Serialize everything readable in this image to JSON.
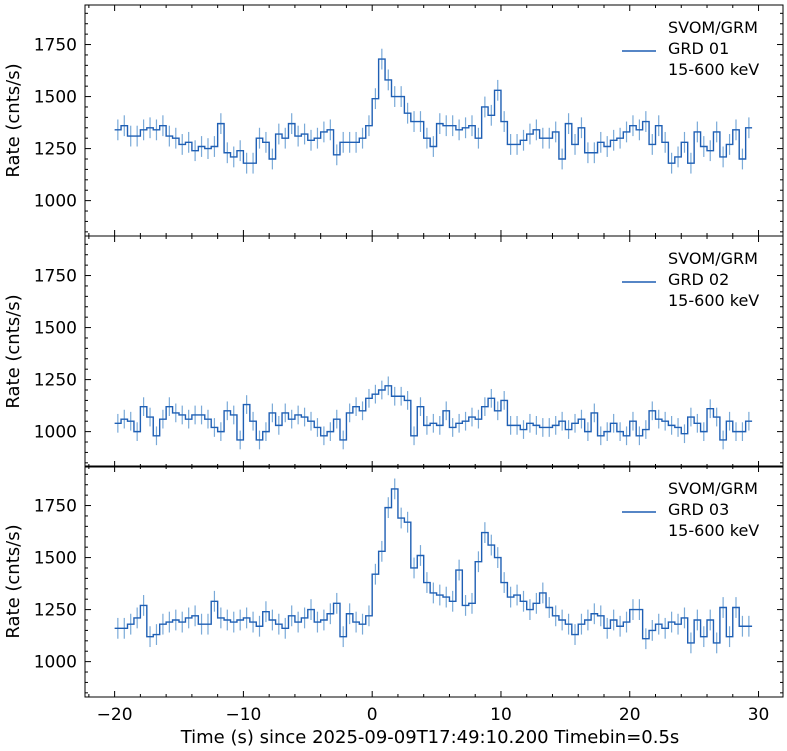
{
  "chart_data": [
    {
      "type": "line",
      "panel": "GRD 01",
      "ylabel": "Rate (cnts/s)",
      "xlabel": "",
      "ylim": [
        830,
        1940
      ],
      "xlim": [
        -22.3,
        31.9
      ],
      "yticks": [
        1000,
        1250,
        1500,
        1750
      ],
      "legend_lines": [
        "SVOM/GRM",
        "GRD 01",
        "15-600 keV"
      ],
      "legend_placement": "top-right",
      "series": [
        {
          "name": "GRD 01",
          "bin_width": 0.5,
          "x": [
            -20.0,
            -19.5,
            -19.0,
            -18.5,
            -18.0,
            -17.5,
            -17.0,
            -16.5,
            -16.0,
            -15.5,
            -15.0,
            -14.5,
            -14.0,
            -13.5,
            -13.0,
            -12.5,
            -12.0,
            -11.5,
            -11.0,
            -10.5,
            -10.0,
            -9.5,
            -9.0,
            -8.5,
            -8.0,
            -7.5,
            -7.0,
            -6.5,
            -6.0,
            -5.5,
            -5.0,
            -4.5,
            -4.0,
            -3.5,
            -3.0,
            -2.5,
            -2.0,
            -1.5,
            -1.0,
            -0.5,
            0.0,
            0.5,
            1.0,
            1.5,
            2.0,
            2.5,
            3.0,
            3.5,
            4.0,
            4.5,
            5.0,
            5.5,
            6.0,
            6.5,
            7.0,
            7.5,
            8.0,
            8.5,
            9.0,
            9.5,
            10.0,
            10.5,
            11.0,
            11.5,
            12.0,
            12.5,
            13.0,
            13.5,
            14.0,
            14.5,
            15.0,
            15.5,
            16.0,
            16.5,
            17.0,
            17.5,
            18.0,
            18.5,
            19.0,
            19.5,
            20.0,
            20.5,
            21.0,
            21.5,
            22.0,
            22.5,
            23.0,
            23.5,
            24.0,
            24.5,
            25.0,
            25.5,
            26.0,
            26.5,
            27.0,
            27.5,
            28.0,
            28.5,
            29.0
          ],
          "y": [
            1340,
            1360,
            1310,
            1310,
            1340,
            1350,
            1340,
            1360,
            1310,
            1300,
            1270,
            1280,
            1240,
            1260,
            1250,
            1260,
            1370,
            1230,
            1210,
            1240,
            1180,
            1180,
            1300,
            1280,
            1200,
            1320,
            1300,
            1370,
            1310,
            1320,
            1290,
            1300,
            1330,
            1340,
            1220,
            1280,
            1280,
            1280,
            1300,
            1360,
            1490,
            1680,
            1580,
            1500,
            1500,
            1420,
            1380,
            1380,
            1300,
            1260,
            1370,
            1360,
            1360,
            1340,
            1350,
            1360,
            1300,
            1450,
            1410,
            1530,
            1380,
            1270,
            1270,
            1290,
            1320,
            1340,
            1300,
            1300,
            1330,
            1200,
            1370,
            1270,
            1350,
            1230,
            1230,
            1280,
            1260,
            1290,
            1300,
            1330,
            1360,
            1340,
            1380,
            1270,
            1360,
            1280,
            1180,
            1210,
            1280,
            1180,
            1330,
            1260,
            1240,
            1330,
            1210,
            1270,
            1340,
            1200,
            1350
          ],
          "error": 50
        }
      ]
    },
    {
      "type": "line",
      "panel": "GRD 02",
      "ylabel": "Rate (cnts/s)",
      "xlabel": "",
      "ylim": [
        830,
        1940
      ],
      "xlim": [
        -22.3,
        31.9
      ],
      "yticks": [
        1000,
        1250,
        1500,
        1750
      ],
      "legend_lines": [
        "SVOM/GRM",
        "GRD 02",
        "15-600 keV"
      ],
      "legend_placement": "top-right",
      "series": [
        {
          "name": "GRD 02",
          "bin_width": 0.5,
          "x": [
            -20.0,
            -19.5,
            -19.0,
            -18.5,
            -18.0,
            -17.5,
            -17.0,
            -16.5,
            -16.0,
            -15.5,
            -15.0,
            -14.5,
            -14.0,
            -13.5,
            -13.0,
            -12.5,
            -12.0,
            -11.5,
            -11.0,
            -10.5,
            -10.0,
            -9.5,
            -9.0,
            -8.5,
            -8.0,
            -7.5,
            -7.0,
            -6.5,
            -6.0,
            -5.5,
            -5.0,
            -4.5,
            -4.0,
            -3.5,
            -3.0,
            -2.5,
            -2.0,
            -1.5,
            -1.0,
            -0.5,
            0.0,
            0.5,
            1.0,
            1.5,
            2.0,
            2.5,
            3.0,
            3.5,
            4.0,
            4.5,
            5.0,
            5.5,
            6.0,
            6.5,
            7.0,
            7.5,
            8.0,
            8.5,
            9.0,
            9.5,
            10.0,
            10.5,
            11.0,
            11.5,
            12.0,
            12.5,
            13.0,
            13.5,
            14.0,
            14.5,
            15.0,
            15.5,
            16.0,
            16.5,
            17.0,
            17.5,
            18.0,
            18.5,
            19.0,
            19.5,
            20.0,
            20.5,
            21.0,
            21.5,
            22.0,
            22.5,
            23.0,
            23.5,
            24.0,
            24.5,
            25.0,
            25.5,
            26.0,
            26.5,
            27.0,
            27.5,
            28.0,
            28.5,
            29.0
          ],
          "y": [
            1040,
            1060,
            1050,
            1000,
            1120,
            1070,
            980,
            1060,
            1120,
            1090,
            1080,
            1060,
            1080,
            1080,
            1060,
            1020,
            1000,
            1100,
            1080,
            960,
            1130,
            1050,
            960,
            1000,
            1090,
            1030,
            1090,
            1060,
            1080,
            1070,
            1050,
            1020,
            980,
            1000,
            1060,
            960,
            1090,
            1120,
            1100,
            1160,
            1180,
            1200,
            1220,
            1170,
            1170,
            1150,
            980,
            1120,
            1030,
            1040,
            1030,
            1100,
            1020,
            1040,
            1050,
            1070,
            1060,
            1120,
            1160,
            1100,
            1150,
            1030,
            1030,
            1010,
            1040,
            1030,
            1020,
            1020,
            1030,
            1050,
            1010,
            1040,
            1060,
            1000,
            1090,
            980,
            1000,
            1040,
            1000,
            980,
            1050,
            980,
            1010,
            1100,
            1060,
            1050,
            1030,
            1020,
            990,
            1070,
            1040,
            1000,
            1110,
            1070,
            960,
            1050,
            1000,
            1000,
            1050
          ],
          "error": 45
        }
      ]
    },
    {
      "type": "line",
      "panel": "GRD 03",
      "ylabel": "Rate (cnts/s)",
      "xlabel": "Time (s) since 2025-09-09T17:49:10.200 Timebin=0.5s",
      "ylim": [
        830,
        1940
      ],
      "xlim": [
        -22.3,
        31.9
      ],
      "yticks": [
        1000,
        1250,
        1500,
        1750
      ],
      "xticks": [
        -20,
        -10,
        0,
        10,
        20,
        30
      ],
      "xtick_labels": [
        "−20",
        "−10",
        "0",
        "10",
        "20",
        "30"
      ],
      "legend_lines": [
        "SVOM/GRM",
        "GRD 03",
        "15-600 keV"
      ],
      "legend_placement": "top-right",
      "series": [
        {
          "name": "GRD 03",
          "bin_width": 0.5,
          "x": [
            -20.0,
            -19.5,
            -19.0,
            -18.5,
            -18.0,
            -17.5,
            -17.0,
            -16.5,
            -16.0,
            -15.5,
            -15.0,
            -14.5,
            -14.0,
            -13.5,
            -13.0,
            -12.5,
            -12.0,
            -11.5,
            -11.0,
            -10.5,
            -10.0,
            -9.5,
            -9.0,
            -8.5,
            -8.0,
            -7.5,
            -7.0,
            -6.5,
            -6.0,
            -5.5,
            -5.0,
            -4.5,
            -4.0,
            -3.5,
            -3.0,
            -2.5,
            -2.0,
            -1.5,
            -1.0,
            -0.5,
            0.0,
            0.5,
            1.0,
            1.5,
            2.0,
            2.5,
            3.0,
            3.5,
            4.0,
            4.5,
            5.0,
            5.5,
            6.0,
            6.5,
            7.0,
            7.5,
            8.0,
            8.5,
            9.0,
            9.5,
            10.0,
            10.5,
            11.0,
            11.5,
            12.0,
            12.5,
            13.0,
            13.5,
            14.0,
            14.5,
            15.0,
            15.5,
            16.0,
            16.5,
            17.0,
            17.5,
            18.0,
            18.5,
            19.0,
            19.5,
            20.0,
            20.5,
            21.0,
            21.5,
            22.0,
            22.5,
            23.0,
            23.5,
            24.0,
            24.5,
            25.0,
            25.5,
            26.0,
            26.5,
            27.0,
            27.5,
            28.0,
            28.5,
            29.0
          ],
          "y": [
            1160,
            1160,
            1180,
            1210,
            1270,
            1120,
            1130,
            1180,
            1190,
            1200,
            1190,
            1210,
            1220,
            1180,
            1180,
            1290,
            1210,
            1200,
            1190,
            1200,
            1210,
            1190,
            1170,
            1240,
            1200,
            1180,
            1160,
            1220,
            1190,
            1210,
            1250,
            1190,
            1200,
            1230,
            1280,
            1120,
            1230,
            1190,
            1180,
            1220,
            1420,
            1530,
            1740,
            1830,
            1690,
            1670,
            1450,
            1510,
            1380,
            1330,
            1320,
            1310,
            1290,
            1440,
            1270,
            1280,
            1480,
            1620,
            1560,
            1500,
            1380,
            1310,
            1320,
            1290,
            1250,
            1280,
            1330,
            1260,
            1220,
            1200,
            1180,
            1130,
            1180,
            1200,
            1230,
            1220,
            1160,
            1200,
            1170,
            1190,
            1250,
            1250,
            1110,
            1150,
            1180,
            1160,
            1190,
            1180,
            1210,
            1090,
            1200,
            1120,
            1200,
            1090,
            1260,
            1120,
            1260,
            1170,
            1170
          ],
          "error": 50
        }
      ]
    }
  ],
  "colors": {
    "line": "#1f5fb4",
    "errorbar": "#7aaad8"
  }
}
